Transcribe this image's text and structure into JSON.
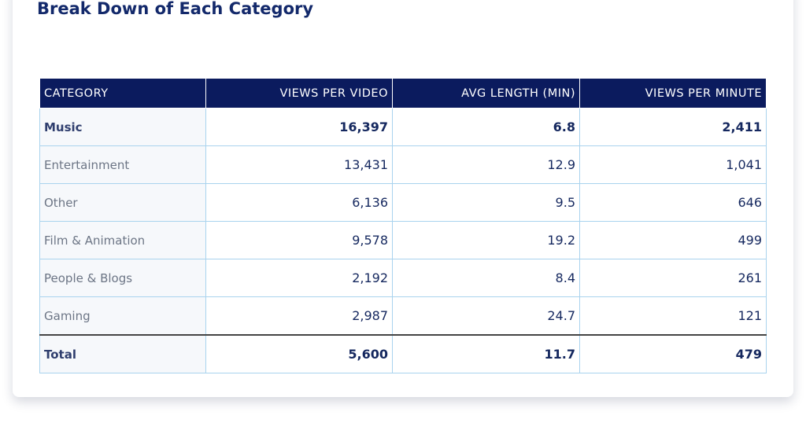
{
  "header": {
    "title": "Break Down of Each Category"
  },
  "table": {
    "columns": [
      "CATEGORY",
      "VIEWS PER VIDEO",
      "AVG LENGTH (MIN)",
      "VIEWS PER MINUTE"
    ],
    "rows": [
      [
        "Music",
        "16,397",
        "6.8",
        "2,411"
      ],
      [
        "Entertainment",
        "13,431",
        "12.9",
        "1,041"
      ],
      [
        "Other",
        "6,136",
        "9.5",
        "646"
      ],
      [
        "Film & Animation",
        "9,578",
        "19.2",
        "499"
      ],
      [
        "People & Blogs",
        "2,192",
        "8.4",
        "261"
      ],
      [
        "Gaming",
        "2,987",
        "24.7",
        "121"
      ]
    ],
    "total": [
      "Total",
      "5,600",
      "11.7",
      "479"
    ]
  }
}
